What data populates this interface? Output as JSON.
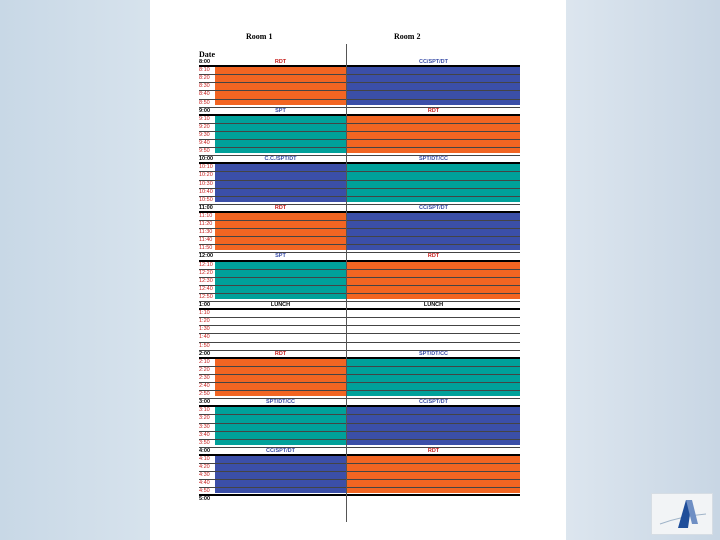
{
  "headers": {
    "room1": "Room 1",
    "room2": "Room 2",
    "date": "Date"
  },
  "colors": {
    "rdt": "#f26522",
    "teal": "#00a19a",
    "blue": "#3b4fa8",
    "red_text": "#c8201e"
  },
  "hours": [
    {
      "time": "8:00",
      "room1": {
        "label": "RDT",
        "type": "rdt"
      },
      "room2": {
        "label": "CC/SPT/DT",
        "type": "blue"
      }
    },
    {
      "time": "9:00",
      "room1": {
        "label": "SPT",
        "type": "teal"
      },
      "room2": {
        "label": "RDT",
        "type": "rdt"
      }
    },
    {
      "time": "10:00",
      "room1": {
        "label": "C.C./SPT/DT",
        "type": "blue"
      },
      "room2": {
        "label": "SPT/DT/CC",
        "type": "teal"
      }
    },
    {
      "time": "11:00",
      "room1": {
        "label": "RDT",
        "type": "rdt"
      },
      "room2": {
        "label": "CC/SPT/DT",
        "type": "blue"
      }
    },
    {
      "time": "12:00",
      "room1": {
        "label": "SPT",
        "type": "teal"
      },
      "room2": {
        "label": "RDT",
        "type": "rdt"
      }
    },
    {
      "time": "1:00",
      "room1": {
        "label": "LUNCH",
        "type": "lunch"
      },
      "room2": {
        "label": "LUNCH",
        "type": "lunch"
      }
    },
    {
      "time": "2:00",
      "room1": {
        "label": "RDT",
        "type": "rdt"
      },
      "room2": {
        "label": "SPT/DT/CC",
        "type": "teal"
      }
    },
    {
      "time": "3:00",
      "room1": {
        "label": "SPT/DT/CC",
        "type": "teal"
      },
      "room2": {
        "label": "CC/SPT/DT",
        "type": "blue"
      }
    },
    {
      "time": "4:00",
      "room1": {
        "label": "CC/SPT/DT",
        "type": "blue"
      },
      "room2": {
        "label": "RDT",
        "type": "rdt"
      }
    }
  ],
  "end_time": "5:00"
}
